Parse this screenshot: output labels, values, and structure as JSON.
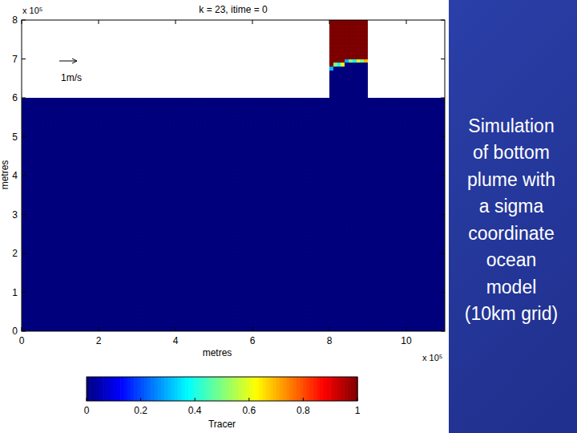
{
  "chart_data": {
    "type": "heatmap",
    "title": "k = 23, itime = 0",
    "xlabel": "metres",
    "ylabel": "metres",
    "x_multiplier": "x 10⁵",
    "y_multiplier": "x 10⁵",
    "xlim": [
      0,
      11
    ],
    "ylim": [
      0,
      8
    ],
    "xticks": [
      0,
      2,
      4,
      6,
      8,
      10
    ],
    "yticks": [
      0,
      1,
      2,
      3,
      4,
      5,
      6,
      7,
      8
    ],
    "annotations": [
      {
        "text": "1m/s"
      }
    ],
    "cells": [
      {
        "x": [
          0,
          11
        ],
        "y": [
          0,
          6
        ],
        "value": 0
      },
      {
        "x": [
          8.0,
          8.1
        ],
        "y": [
          6,
          6.7
        ],
        "value": 0
      },
      {
        "x": [
          8.0,
          8.1
        ],
        "y": [
          6.7,
          6.8
        ],
        "value": 0.3
      },
      {
        "x": [
          8.0,
          8.1
        ],
        "y": [
          6.8,
          8
        ],
        "value": 1
      },
      {
        "x": [
          8.1,
          8.2
        ],
        "y": [
          6,
          6.8
        ],
        "value": 0
      },
      {
        "x": [
          8.1,
          8.2
        ],
        "y": [
          6.8,
          6.9
        ],
        "value": 0.5
      },
      {
        "x": [
          8.1,
          8.2
        ],
        "y": [
          6.9,
          8
        ],
        "value": 1
      },
      {
        "x": [
          8.2,
          8.3
        ],
        "y": [
          6,
          6.8
        ],
        "value": 0
      },
      {
        "x": [
          8.2,
          8.3
        ],
        "y": [
          6.8,
          6.9
        ],
        "value": 0.4
      },
      {
        "x": [
          8.2,
          8.3
        ],
        "y": [
          6.9,
          8
        ],
        "value": 1
      },
      {
        "x": [
          8.3,
          8.4
        ],
        "y": [
          6,
          6.8
        ],
        "value": 0
      },
      {
        "x": [
          8.3,
          8.4
        ],
        "y": [
          6.8,
          6.9
        ],
        "value": 0.6
      },
      {
        "x": [
          8.3,
          8.4
        ],
        "y": [
          6.9,
          8
        ],
        "value": 1
      },
      {
        "x": [
          8.4,
          8.5
        ],
        "y": [
          6,
          6.9
        ],
        "value": 0
      },
      {
        "x": [
          8.4,
          8.5
        ],
        "y": [
          6.9,
          7.0
        ],
        "value": 0.3
      },
      {
        "x": [
          8.4,
          8.5
        ],
        "y": [
          7.0,
          8
        ],
        "value": 1
      },
      {
        "x": [
          8.5,
          8.6
        ],
        "y": [
          6,
          6.9
        ],
        "value": 0
      },
      {
        "x": [
          8.5,
          8.6
        ],
        "y": [
          6.9,
          7.0
        ],
        "value": 0.5
      },
      {
        "x": [
          8.5,
          8.6
        ],
        "y": [
          7.0,
          8
        ],
        "value": 1
      },
      {
        "x": [
          8.6,
          8.7
        ],
        "y": [
          6,
          6.9
        ],
        "value": 0
      },
      {
        "x": [
          8.6,
          8.7
        ],
        "y": [
          6.9,
          7.0
        ],
        "value": 0.4
      },
      {
        "x": [
          8.6,
          8.7
        ],
        "y": [
          7.0,
          8
        ],
        "value": 1
      },
      {
        "x": [
          8.7,
          8.8
        ],
        "y": [
          6,
          6.9
        ],
        "value": 0
      },
      {
        "x": [
          8.7,
          8.8
        ],
        "y": [
          6.9,
          7.0
        ],
        "value": 0.6
      },
      {
        "x": [
          8.7,
          8.8
        ],
        "y": [
          7.0,
          8
        ],
        "value": 1
      },
      {
        "x": [
          8.8,
          8.9
        ],
        "y": [
          6,
          6.9
        ],
        "value": 0
      },
      {
        "x": [
          8.8,
          8.9
        ],
        "y": [
          6.9,
          7.0
        ],
        "value": 0.5
      },
      {
        "x": [
          8.8,
          8.9
        ],
        "y": [
          7.0,
          8
        ],
        "value": 1
      },
      {
        "x": [
          8.9,
          9.0
        ],
        "y": [
          6,
          6.9
        ],
        "value": 0
      },
      {
        "x": [
          8.9,
          9.0
        ],
        "y": [
          6.9,
          7.0
        ],
        "value": 0.7
      },
      {
        "x": [
          8.9,
          9.0
        ],
        "y": [
          7.0,
          8
        ],
        "value": 1
      }
    ],
    "colorbar": {
      "range": [
        0,
        1
      ],
      "ticks": [
        0,
        0.2,
        0.4,
        0.6,
        0.8,
        1
      ],
      "label": "Tracer"
    }
  },
  "slide": {
    "caption_lines": [
      "Simulation",
      "of bottom",
      "plume with",
      "a sigma",
      "coordinate",
      "ocean",
      "model",
      "(10km grid)"
    ]
  }
}
